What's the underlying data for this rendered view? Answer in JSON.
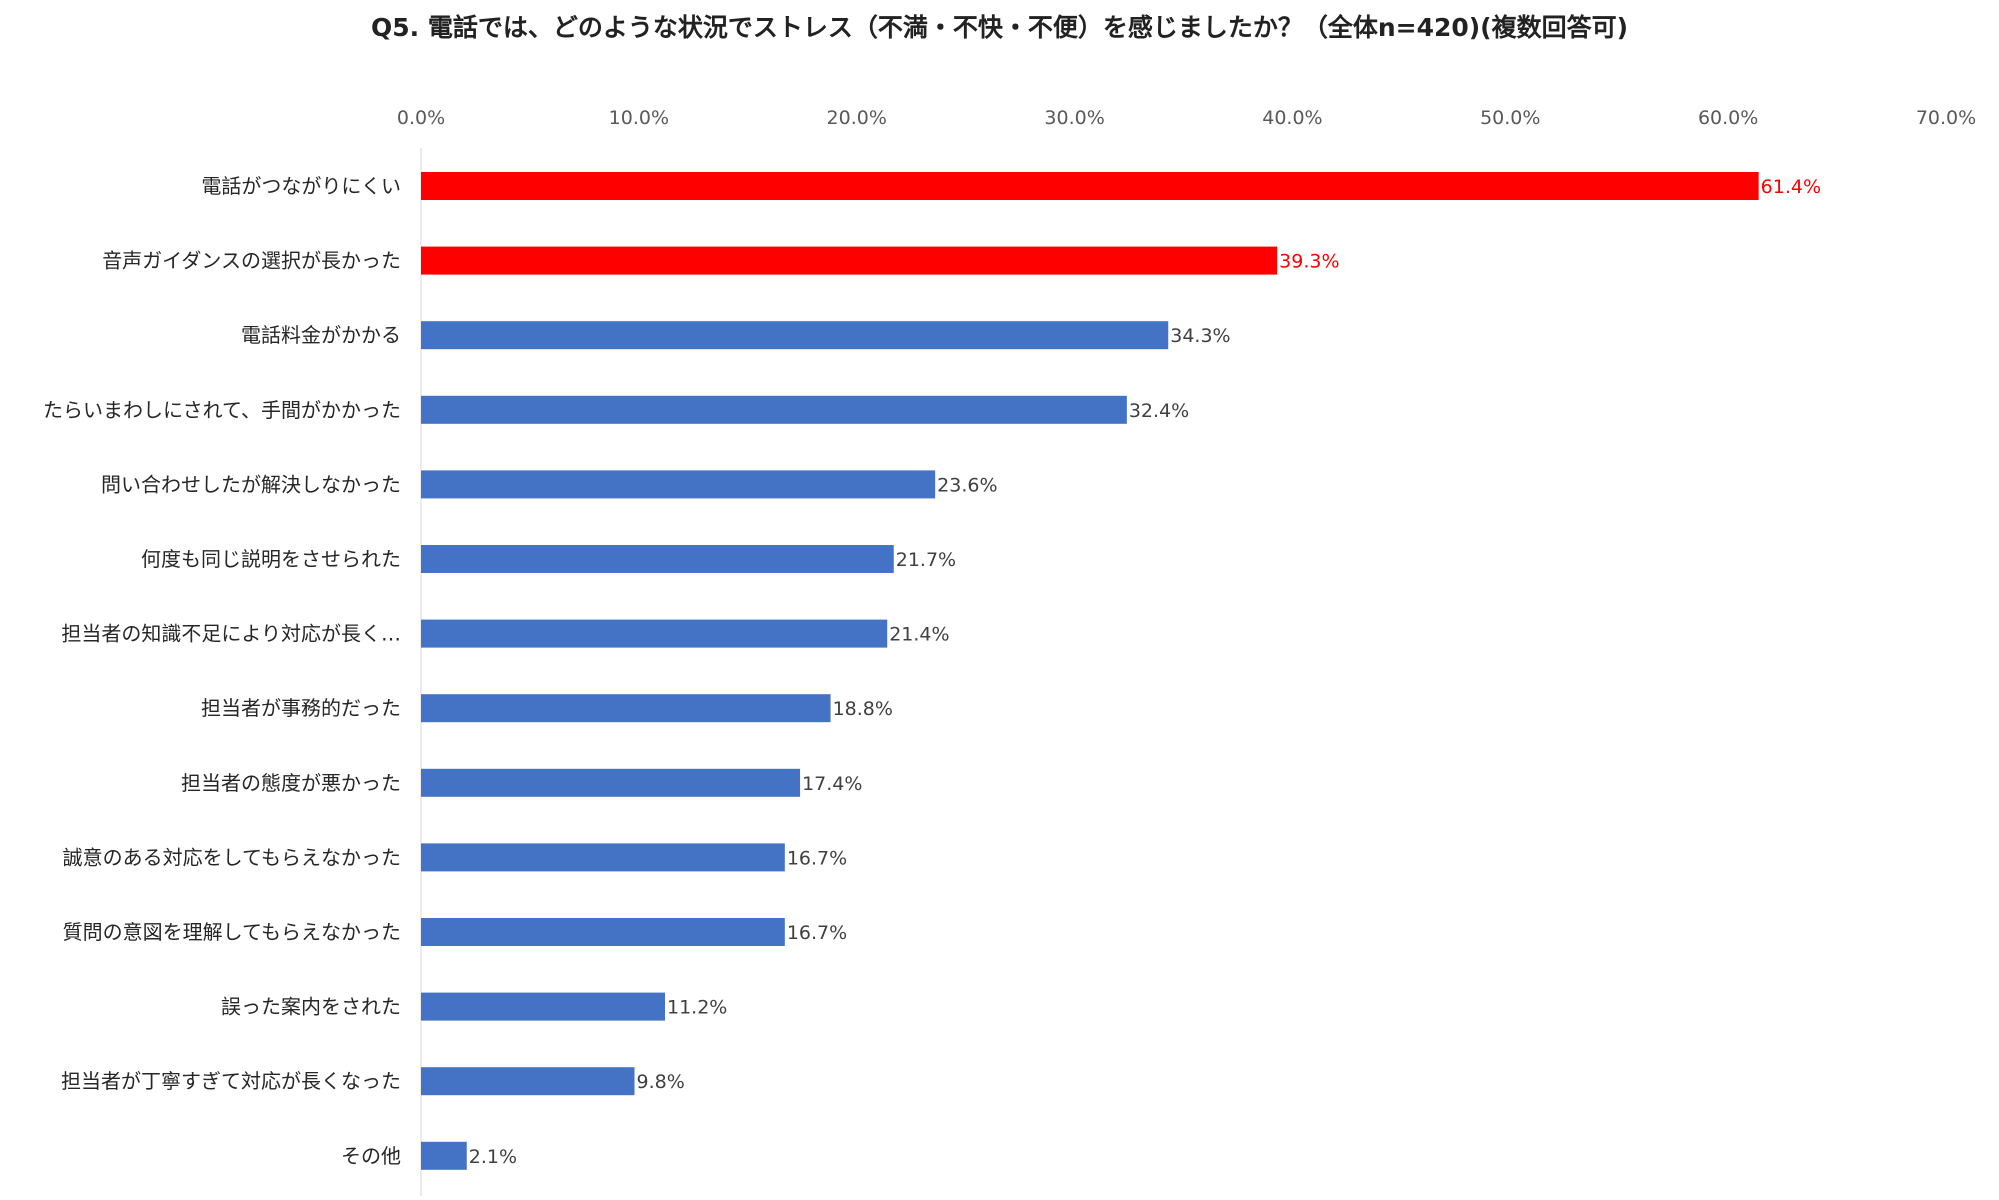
{
  "chart_data": {
    "type": "bar",
    "orientation": "horizontal",
    "title": "Q5. 電話では、どのような状況でストレス（不満・不快・不便）を感じましたか？（全体n=420)(複数回答可)",
    "xlim": [
      0,
      70
    ],
    "tick_labels": [
      "0.0%",
      "10.0%",
      "20.0%",
      "30.0%",
      "40.0%",
      "50.0%",
      "60.0%",
      "70.0%"
    ],
    "categories": [
      "電話がつながりにくい",
      "音声ガイダンスの選択が長かった",
      "電話料金がかかる",
      "たらいまわしにされて、手間がかかった",
      "問い合わせしたが解決しなかった",
      "何度も同じ説明をさせられた",
      "担当者の知識不足により対応が長く…",
      "担当者が事務的だった",
      "担当者の態度が悪かった",
      "誠意のある対応をしてもらえなかった",
      "質問の意図を理解してもらえなかった",
      "誤った案内をされた",
      "担当者が丁寧すぎて対応が長くなった",
      "その他"
    ],
    "values": [
      61.4,
      39.3,
      34.3,
      32.4,
      23.6,
      21.7,
      21.4,
      18.8,
      17.4,
      16.7,
      16.7,
      11.2,
      9.8,
      2.1
    ],
    "value_labels": [
      "61.4%",
      "39.3%",
      "34.3%",
      "32.4%",
      "23.6%",
      "21.7%",
      "21.4%",
      "18.8%",
      "17.4%",
      "16.7%",
      "16.7%",
      "11.2%",
      "9.8%",
      "2.1%"
    ],
    "highlighted": [
      true,
      true,
      false,
      false,
      false,
      false,
      false,
      false,
      false,
      false,
      false,
      false,
      false,
      false
    ],
    "colors": {
      "highlight": "#ff0000",
      "default": "#4472c4",
      "highlight_label": "#ff0000",
      "default_label": "#404040",
      "axis": "#d9d9d9"
    },
    "grid": false,
    "legend": "none"
  }
}
